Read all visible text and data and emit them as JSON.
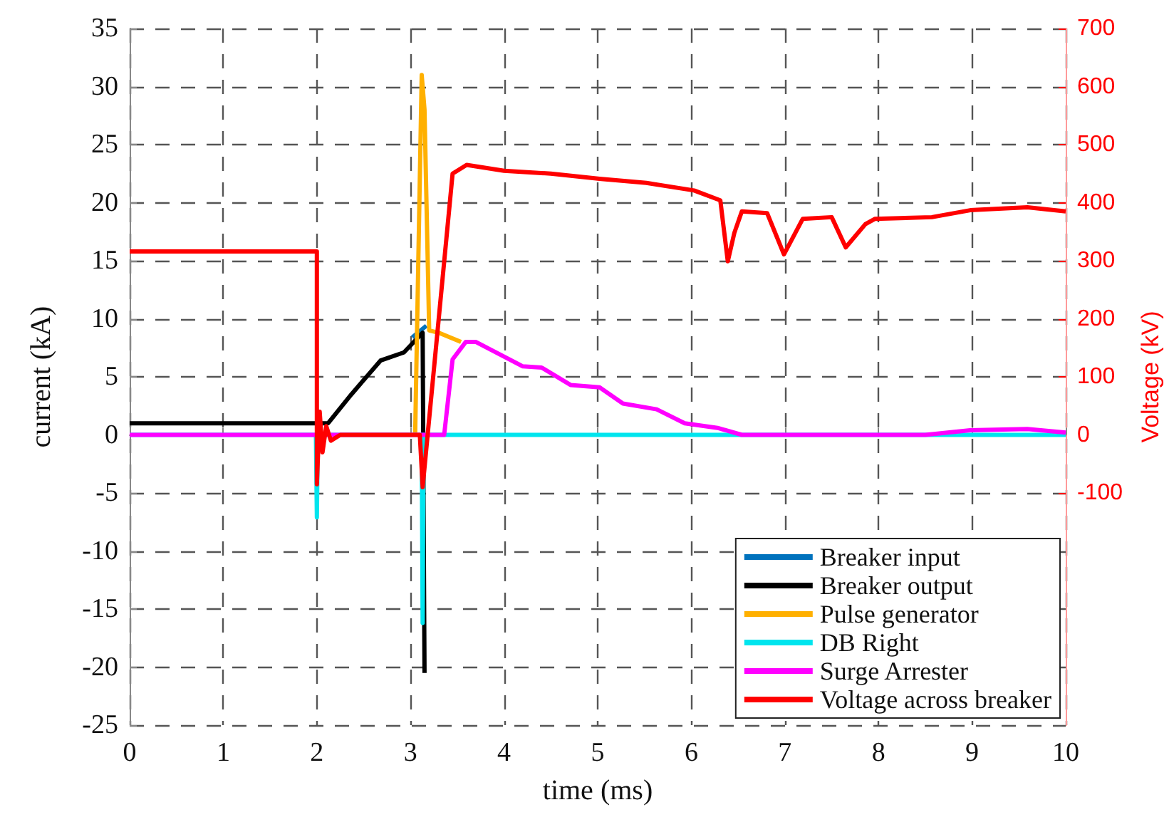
{
  "chart_data": {
    "type": "line",
    "xlabel": "time (ms)",
    "ylabel": "current (kA)",
    "y2label": "Voltage (kV)",
    "xlim": [
      0,
      10
    ],
    "xticks": [
      0,
      1,
      2,
      3,
      4,
      5,
      6,
      7,
      8,
      9,
      10
    ],
    "ylim": [
      -25,
      35
    ],
    "yticks": [
      -25,
      -20,
      -15,
      -10,
      -5,
      0,
      5,
      10,
      15,
      20,
      25,
      30,
      35
    ],
    "y2lim": [
      -500,
      700
    ],
    "y2ticks": [
      -100,
      0,
      100,
      200,
      300,
      400,
      500,
      600,
      700
    ],
    "grid": true,
    "legend": "bottom right",
    "marker": "none",
    "line_style": "solid",
    "series": [
      {
        "name": "Breaker input",
        "color": "#0072bd",
        "x": [
          3.02,
          3.17
        ],
        "values": [
          8.4,
          9.4
        ]
      },
      {
        "name": "Breaker output",
        "color": "#000000",
        "x": [
          0,
          2.0,
          2.12,
          2.37,
          2.68,
          2.93,
          3.13,
          3.15
        ],
        "values": [
          1,
          1,
          1,
          3.5,
          6.4,
          7.1,
          8.8,
          -20.5
        ]
      },
      {
        "name": "Pulse generator",
        "color": "#ffb000",
        "x": [
          3.05,
          3.12,
          3.15,
          3.2,
          3.3,
          3.54
        ],
        "values": [
          0,
          31,
          28,
          9,
          8.8,
          8
        ]
      },
      {
        "name": "DB Right",
        "color": "#00e5ee",
        "x": [
          0,
          1.99,
          2.0,
          2.01,
          3.12,
          3.13,
          3.14,
          10
        ],
        "values": [
          0,
          0,
          -7.1,
          0,
          0,
          -16.2,
          0,
          0
        ]
      },
      {
        "name": "Surge Arrester",
        "color": "#ff00ff",
        "x": [
          0,
          3.36,
          3.45,
          3.59,
          3.7,
          4.2,
          4.4,
          4.71,
          5.02,
          5.27,
          5.63,
          5.93,
          6.28,
          6.54,
          8.5,
          8.98,
          9.59,
          10
        ],
        "values": [
          0,
          0,
          6.5,
          8,
          8,
          5.9,
          5.8,
          4.3,
          4.1,
          2.7,
          2.2,
          1,
          0.6,
          0,
          0,
          0.4,
          0.5,
          0.2
        ]
      },
      {
        "name": "Voltage across breaker",
        "color": "#ff0000",
        "axis": "y2",
        "x": [
          0,
          2.0,
          2.0,
          2.03,
          2.06,
          2.1,
          2.15,
          2.25,
          3.1,
          3.13,
          3.45,
          3.6,
          4.0,
          4.5,
          5.02,
          5.52,
          6.03,
          6.31,
          6.39,
          6.46,
          6.54,
          6.81,
          6.99,
          7.19,
          7.5,
          7.65,
          7.86,
          7.96,
          8.57,
          8.98,
          9.59,
          10
        ],
        "values": [
          316,
          316,
          -85,
          40,
          -30,
          15,
          -10,
          0,
          0,
          -90,
          450,
          465,
          455,
          450,
          441,
          434,
          421,
          404,
          299,
          348,
          385,
          382,
          311,
          372,
          375,
          323,
          363,
          372,
          375,
          387,
          392,
          385
        ]
      }
    ]
  }
}
